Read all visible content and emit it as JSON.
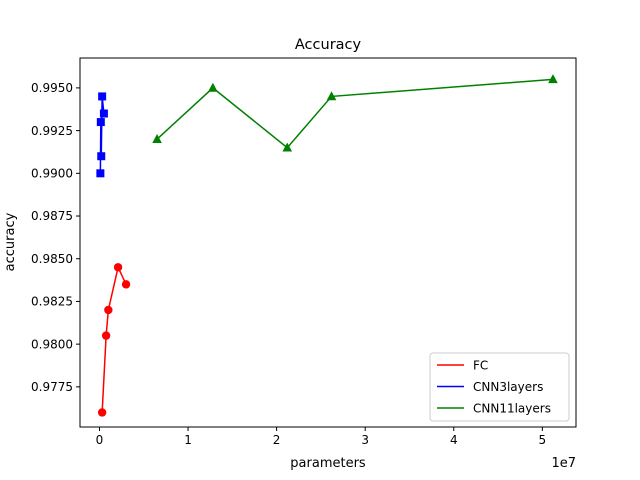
{
  "chart_data": {
    "type": "line",
    "title": "Accuracy",
    "xlabel": "parameters",
    "ylabel": "accuracy",
    "x_offset_label": "1e7",
    "xlim": [
      -2200000,
      53800000
    ],
    "ylim": [
      0.97515,
      0.99675
    ],
    "x_ticks": [
      0,
      10000000,
      20000000,
      30000000,
      40000000,
      50000000
    ],
    "x_tick_labels": [
      "0",
      "1",
      "2",
      "3",
      "4",
      "5"
    ],
    "y_ticks": [
      0.9775,
      0.98,
      0.9825,
      0.985,
      0.9875,
      0.99,
      0.9925,
      0.995
    ],
    "y_tick_labels": [
      "0.9775",
      "0.9800",
      "0.9825",
      "0.9850",
      "0.9875",
      "0.9900",
      "0.9925",
      "0.9950"
    ],
    "grid": false,
    "legend_position": "lower-right",
    "series": [
      {
        "name": "FC",
        "color": "#ff0000",
        "marker": "circle",
        "x": [
          300000,
          750000,
          1000000,
          2100000,
          3000000
        ],
        "y": [
          0.976,
          0.9805,
          0.982,
          0.9845,
          0.9835
        ]
      },
      {
        "name": "CNN3layers",
        "color": "#0000ff",
        "marker": "square",
        "x": [
          100000,
          150000,
          200000,
          300000,
          500000
        ],
        "y": [
          0.99,
          0.993,
          0.991,
          0.9945,
          0.9935
        ]
      },
      {
        "name": "CNN11layers",
        "color": "#008000",
        "marker": "triangle",
        "x": [
          6500000,
          12800000,
          21200000,
          26200000,
          51200000
        ],
        "y": [
          0.992,
          0.995,
          0.9915,
          0.9945,
          0.9955
        ]
      }
    ]
  }
}
